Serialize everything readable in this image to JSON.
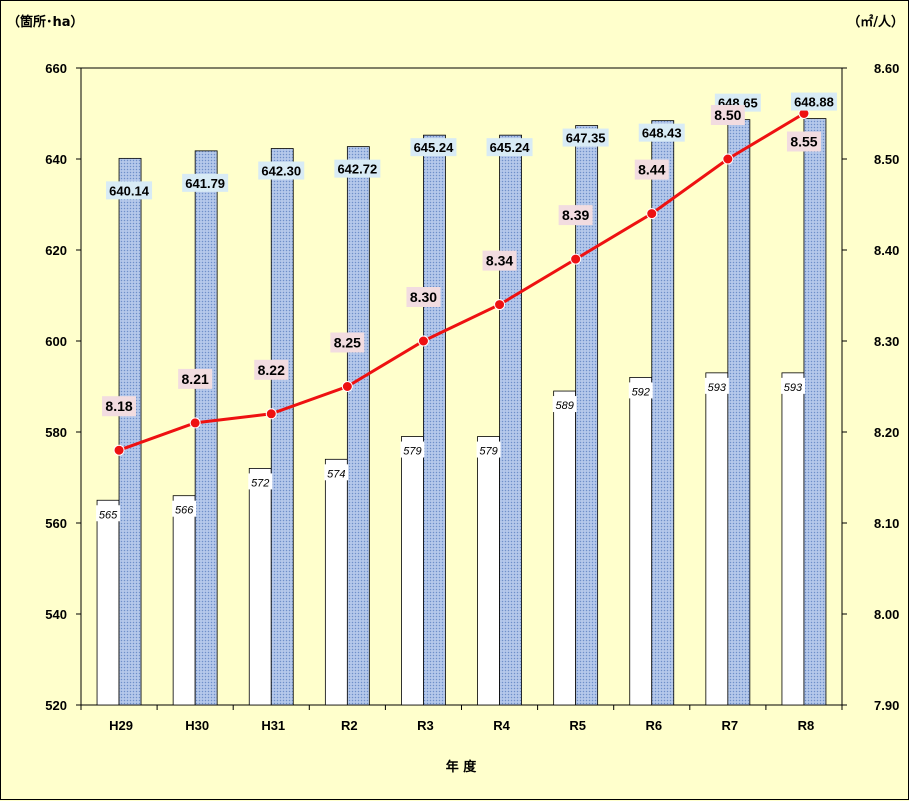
{
  "chart_data": {
    "type": "bar",
    "left_unit": "（箇所･ha）",
    "right_unit": "（㎡/人）",
    "xlabel": "年 度",
    "categories": [
      "H29",
      "H30",
      "H31",
      "R2",
      "R3",
      "R4",
      "R5",
      "R6",
      "R7",
      "R8"
    ],
    "left_axis": {
      "min": 520,
      "max": 660,
      "ticks": [
        "520",
        "540",
        "560",
        "580",
        "600",
        "620",
        "640",
        "660"
      ]
    },
    "right_axis": {
      "min": 7.9,
      "max": 8.6,
      "ticks": [
        "7.90",
        "8.00",
        "8.10",
        "8.20",
        "8.30",
        "8.40",
        "8.50",
        "8.60"
      ]
    },
    "series": [
      {
        "type": "bar",
        "axis": "left",
        "color": "#ffffff",
        "values": [
          565,
          566,
          572,
          574,
          579,
          579,
          589,
          592,
          593,
          593
        ],
        "labels": [
          "565",
          "566",
          "572",
          "574",
          "579",
          "579",
          "589",
          "592",
          "593",
          "593"
        ]
      },
      {
        "type": "bar",
        "axis": "left",
        "color": "#a9bfe6",
        "values": [
          640.14,
          641.79,
          642.3,
          642.72,
          645.24,
          645.24,
          647.35,
          648.43,
          648.65,
          648.88
        ],
        "labels": [
          "640.14",
          "641.79",
          "642.30",
          "642.72",
          "645.24",
          "645.24",
          "647.35",
          "648.43",
          "648.65",
          "648.88"
        ]
      },
      {
        "type": "line",
        "axis": "right",
        "color": "#ee1111",
        "values": [
          8.18,
          8.21,
          8.22,
          8.25,
          8.3,
          8.34,
          8.39,
          8.44,
          8.5,
          8.55
        ],
        "labels": [
          "8.18",
          "8.21",
          "8.22",
          "8.25",
          "8.30",
          "8.34",
          "8.39",
          "8.44",
          "8.50",
          "8.55"
        ]
      }
    ],
    "grid": false,
    "plot_background": "#ffffcc"
  }
}
